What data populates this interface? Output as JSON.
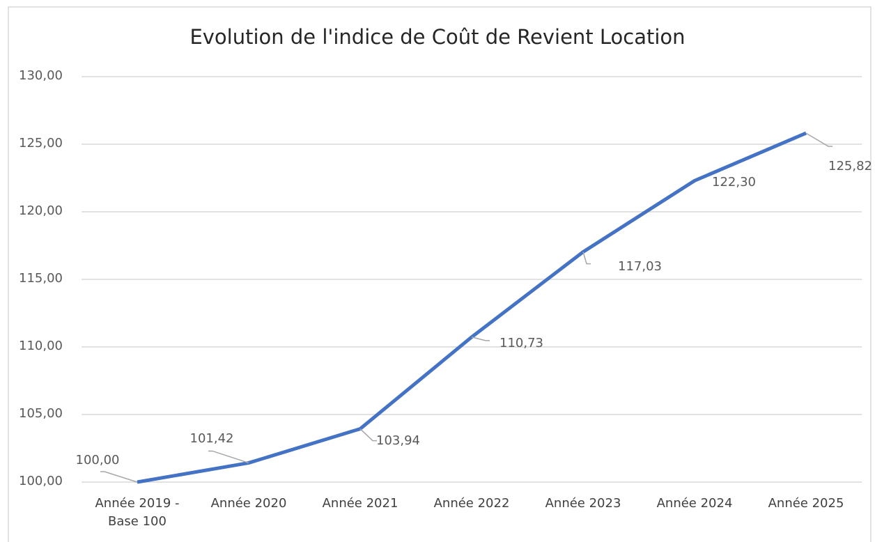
{
  "chart_data": {
    "type": "line",
    "title": "Evolution de l'indice de Coût de Revient Location",
    "categories": [
      "Année 2019 - Base 100",
      "Année 2020",
      "Année 2021",
      "Année 2022",
      "Année 2023",
      "Année 2024",
      "Année 2025"
    ],
    "series": [
      {
        "name": "Indice",
        "color": "#4472c4",
        "values": [
          100,
          101.42,
          103.94,
          110.73,
          117.03,
          122.3,
          125.82
        ],
        "value_labels": [
          "100,00",
          "101,42",
          "103,94",
          "110,73",
          "117,03",
          "122,30",
          "125,82"
        ]
      }
    ],
    "ylim": [
      100,
      130
    ],
    "yticks": [
      {
        "value": 100,
        "label": "100,00"
      },
      {
        "value": 105,
        "label": "105,00"
      },
      {
        "value": 110,
        "label": "110,00"
      },
      {
        "value": 115,
        "label": "115,00"
      },
      {
        "value": 120,
        "label": "120,00"
      },
      {
        "value": 125,
        "label": "125,00"
      },
      {
        "value": 130,
        "label": "130,00"
      }
    ],
    "grid": true
  }
}
